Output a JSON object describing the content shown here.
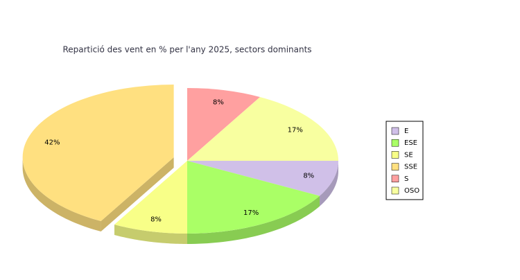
{
  "chart_data": {
    "type": "pie3d",
    "title": "Repartició des vent en % per l'any 2025, sectors dominants",
    "categories": [
      "E",
      "ESE",
      "SE",
      "SSE",
      "S",
      "OSO"
    ],
    "values": [
      8,
      17,
      8,
      42,
      8,
      17
    ],
    "value_labels": [
      "8%",
      "17%",
      "8%",
      "42%",
      "8%",
      "17%"
    ],
    "colors": [
      "#d0c0e8",
      "#aaff66",
      "#f8ff88",
      "#ffe080",
      "#ffa0a0",
      "#f8ffa0"
    ],
    "explode": "SSE",
    "legend": "right"
  }
}
